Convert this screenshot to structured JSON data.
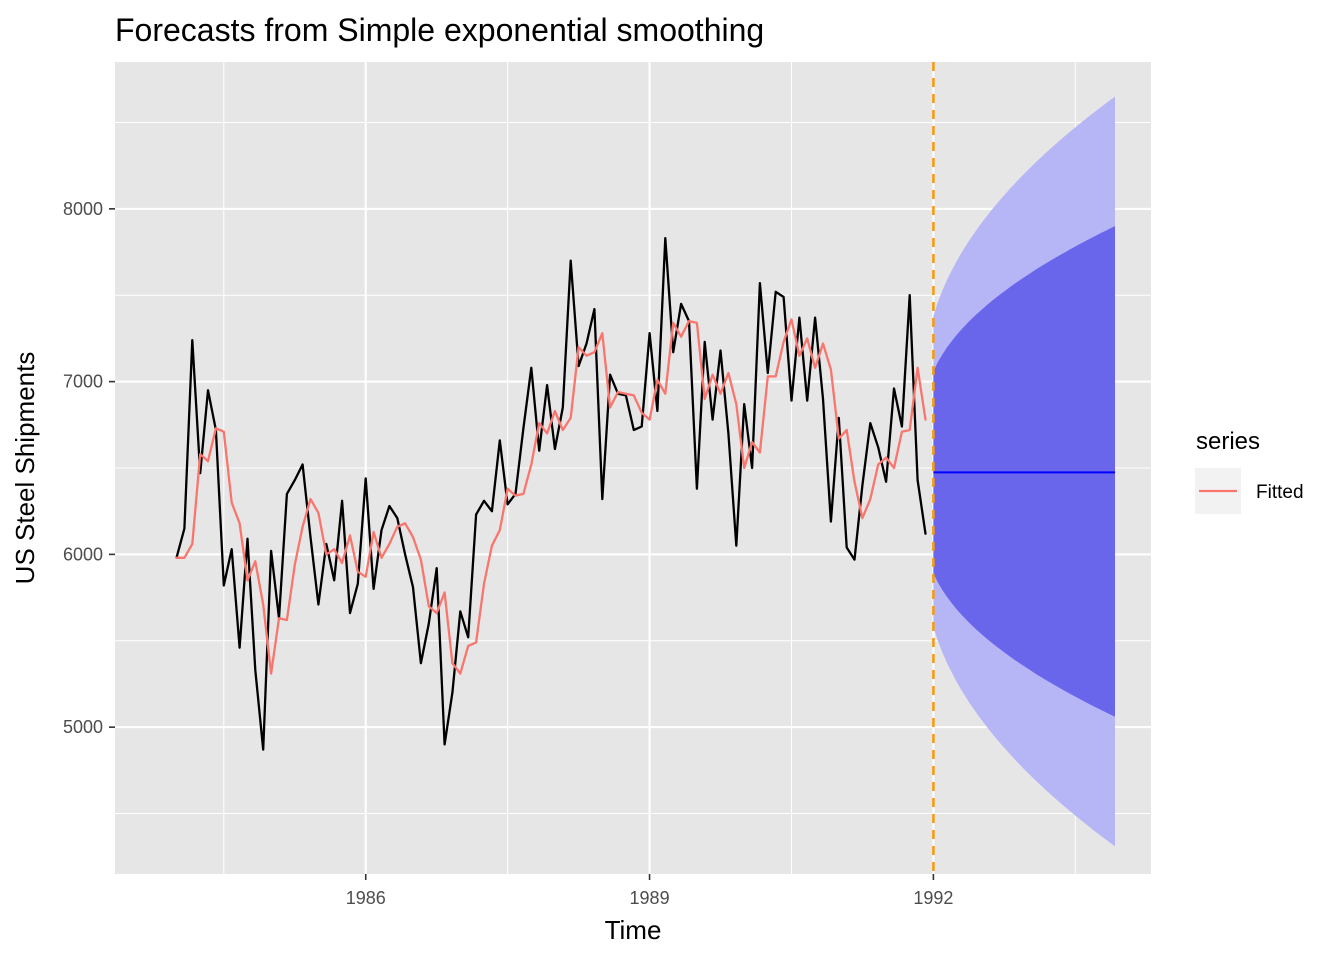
{
  "chart_data": {
    "type": "line",
    "title": "Forecasts from Simple exponential smoothing",
    "xlabel": "Time",
    "ylabel": "US Steel Shipments",
    "xlim": [
      1983.35,
      1994.3
    ],
    "ylim": [
      4150,
      8850
    ],
    "x_ticks": [
      1986,
      1989,
      1992
    ],
    "x_tick_labels": [
      "1986",
      "1989",
      "1992"
    ],
    "x_minor_ticks": [
      1984.5,
      1987.5,
      1990.5,
      1993.5
    ],
    "y_ticks": [
      5000,
      6000,
      7000,
      8000
    ],
    "y_tick_labels": [
      "5000",
      "6000",
      "7000",
      "8000"
    ],
    "y_minor_ticks": [
      4500,
      5500,
      6500,
      7500,
      8500
    ],
    "grid": true,
    "panel_background": "#e6e6e6",
    "start": 1984.0,
    "frequency": 12,
    "series": [
      {
        "color": "#000000",
        "values": [
          5980,
          6150,
          7240,
          6470,
          6950,
          6720,
          5820,
          6030,
          5460,
          6090,
          5330,
          4870,
          6020,
          5630,
          6350,
          6430,
          6520,
          6100,
          5710,
          6060,
          5850,
          6310,
          5660,
          5830,
          6440,
          5800,
          6140,
          6280,
          6210,
          6000,
          5810,
          5370,
          5600,
          5920,
          4900,
          5200,
          5670,
          5520,
          6230,
          6310,
          6250,
          6660,
          6290,
          6350,
          6730,
          7080,
          6600,
          6980,
          6610,
          6850,
          7700,
          7090,
          7220,
          7420,
          6320,
          7040,
          6930,
          6920,
          6720,
          6740,
          7280,
          6830,
          7830,
          7170,
          7450,
          7350,
          6380,
          7230,
          6780,
          7180,
          6700,
          6050,
          6870,
          6500,
          7570,
          7050,
          7520,
          7490,
          6890,
          7370,
          6890,
          7370,
          6900,
          6190,
          6790,
          6040,
          5970,
          6400,
          6760,
          6620,
          6420,
          6960,
          6740,
          7500,
          6430,
          6120
        ]
      },
      {
        "name": "Fitted",
        "color": "#f8766d",
        "values": [
          5980,
          5980,
          6060,
          6580,
          6540,
          6730,
          6710,
          6300,
          6180,
          5850,
          5960,
          5710,
          5310,
          5630,
          5620,
          5940,
          6160,
          6320,
          6240,
          6000,
          6030,
          5950,
          6110,
          5900,
          5870,
          6130,
          5980,
          6060,
          6160,
          6180,
          6100,
          5970,
          5700,
          5660,
          5780,
          5370,
          5310,
          5470,
          5490,
          5830,
          6050,
          6140,
          6380,
          6340,
          6350,
          6520,
          6760,
          6700,
          6830,
          6720,
          6790,
          7200,
          7150,
          7170,
          7280,
          6850,
          6940,
          6930,
          6920,
          6820,
          6780,
          7010,
          6930,
          7340,
          7260,
          7350,
          7340,
          6900,
          7040,
          6930,
          7050,
          6870,
          6500,
          6650,
          6590,
          7030,
          7030,
          7230,
          7360,
          7150,
          7250,
          7080,
          7220,
          7070,
          6670,
          6720,
          6420,
          6210,
          6320,
          6520,
          6560,
          6500,
          6710,
          6720,
          7080,
          6780
        ]
      }
    ],
    "forecast": {
      "start": 1992.0,
      "end": 1993.92,
      "point": 6475,
      "color": "#0000ff",
      "lower80_start": 5890,
      "upper80_start": 7060,
      "lower80_end": 5060,
      "upper80_end": 7900,
      "lower95_start": 5580,
      "upper95_start": 7380,
      "lower95_end": 4310,
      "upper95_end": 8650,
      "band80_color": "#6a66ec",
      "band95_color": "#b6b5f5"
    },
    "vline": {
      "x": 1992.0,
      "color": "#f59d12"
    },
    "legend": {
      "title": "series",
      "position": "right",
      "entries": [
        {
          "label": "Fitted",
          "color": "#f8766d"
        }
      ]
    }
  }
}
